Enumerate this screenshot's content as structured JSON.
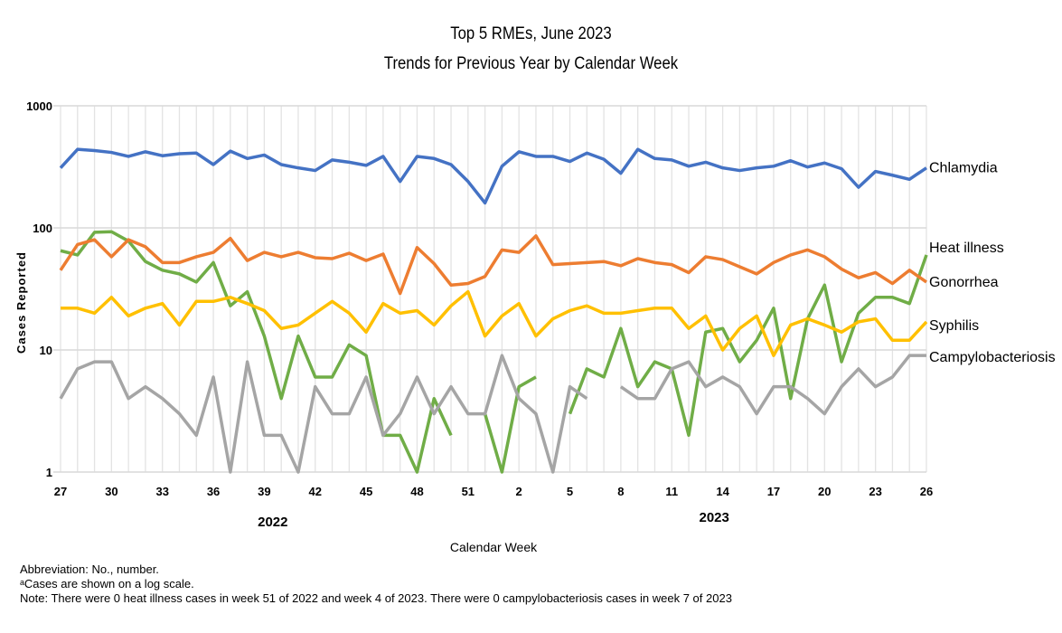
{
  "chart_data": {
    "type": "line",
    "title": "Top 5 RMEs, June 2023",
    "subtitle": "Trends for Previous Year by Calendar Week",
    "xlabel": "Calendar Week",
    "ylabel": "Cases Reported",
    "yscale": "log",
    "ylim": [
      1,
      1000
    ],
    "yticks": [
      "1",
      "10",
      "100",
      "1000"
    ],
    "grid": "vertical gridlines every week, horizontal at each decade",
    "legend": "direct labels at right end of lines",
    "x": [
      27,
      28,
      29,
      30,
      31,
      32,
      33,
      34,
      35,
      36,
      37,
      38,
      39,
      40,
      41,
      42,
      43,
      44,
      45,
      46,
      47,
      48,
      49,
      50,
      51,
      52,
      1,
      2,
      3,
      4,
      5,
      6,
      7,
      8,
      9,
      10,
      11,
      12,
      13,
      14,
      15,
      16,
      17,
      18,
      19,
      20,
      21,
      22,
      23,
      24,
      25,
      26
    ],
    "xtick_labels": [
      "27",
      "30",
      "33",
      "36",
      "39",
      "42",
      "45",
      "48",
      "51",
      "2",
      "5",
      "8",
      "11",
      "14",
      "17",
      "20",
      "23",
      "26"
    ],
    "year_labels": [
      "2022",
      "2023"
    ],
    "series": [
      {
        "name": "Chlamydia",
        "color": "#4472C4",
        "values": [
          310,
          440,
          430,
          415,
          385,
          420,
          390,
          405,
          410,
          330,
          425,
          370,
          395,
          330,
          310,
          295,
          360,
          345,
          325,
          385,
          240,
          385,
          370,
          330,
          240,
          160,
          320,
          420,
          385,
          385,
          350,
          410,
          365,
          280,
          440,
          370,
          360,
          320,
          345,
          310,
          295,
          310,
          320,
          355,
          315,
          340,
          305,
          215,
          290,
          270,
          250,
          310
        ]
      },
      {
        "name": "Heat illness",
        "color": "#70AD47",
        "values": [
          65,
          60,
          92,
          93,
          78,
          53,
          45,
          42,
          36,
          52,
          23,
          30,
          13,
          4,
          13,
          6,
          6,
          11,
          9,
          2,
          2,
          1,
          4,
          2,
          null,
          3,
          1,
          5,
          6,
          null,
          3,
          7,
          6,
          15,
          5,
          8,
          7,
          2,
          14,
          15,
          8,
          12,
          22,
          4,
          18,
          34,
          8,
          20,
          27,
          27,
          24,
          60
        ]
      },
      {
        "name": "Gonorrhea",
        "color": "#ED7D31",
        "values": [
          45,
          73,
          80,
          58,
          80,
          70,
          52,
          52,
          58,
          63,
          82,
          54,
          63,
          58,
          63,
          57,
          56,
          62,
          54,
          61,
          29,
          69,
          51,
          34,
          35,
          40,
          66,
          63,
          86,
          50,
          51,
          52,
          53,
          49,
          56,
          52,
          50,
          43,
          58,
          55,
          48,
          42,
          52,
          60,
          66,
          58,
          46,
          39,
          43,
          35,
          45,
          36
        ]
      },
      {
        "name": "Syphilis",
        "color": "#FFC000",
        "values": [
          22,
          22,
          20,
          27,
          19,
          22,
          24,
          16,
          25,
          25,
          27,
          24,
          21,
          15,
          16,
          20,
          25,
          20,
          14,
          24,
          20,
          21,
          16,
          23,
          30,
          13,
          19,
          24,
          13,
          18,
          21,
          23,
          20,
          20,
          21,
          22,
          22,
          15,
          19,
          10,
          15,
          19,
          9,
          16,
          18,
          16,
          14,
          17,
          18,
          12,
          12,
          17
        ]
      },
      {
        "name": "Campylobacteriosis",
        "color": "#A5A5A5",
        "values": [
          4,
          7,
          8,
          8,
          4,
          5,
          4,
          3,
          2,
          6,
          1,
          8,
          2,
          2,
          1,
          5,
          3,
          3,
          6,
          2,
          3,
          6,
          3,
          5,
          3,
          3,
          9,
          4,
          3,
          1,
          5,
          4,
          null,
          5,
          4,
          4,
          7,
          8,
          5,
          6,
          5,
          3,
          5,
          5,
          4,
          3,
          5,
          7,
          5,
          6,
          9,
          9
        ]
      }
    ]
  },
  "notes": [
    "Abbreviation: No., number.",
    "ᵃCases are shown on a log scale.",
    "Note: There were 0 heat illness cases in week 51 of 2022 and week 4 of 2023. There were 0 campylobacteriosis cases in week 7 of 2023"
  ]
}
